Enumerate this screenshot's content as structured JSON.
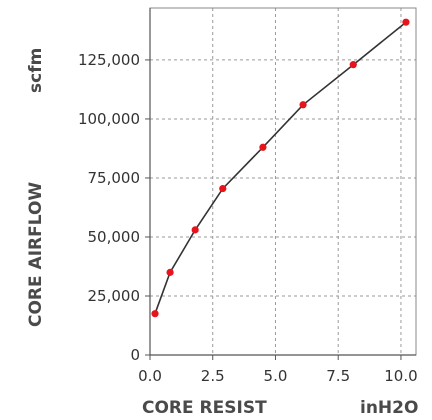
{
  "chart_data": {
    "type": "line",
    "xlabel": "CORE RESIST",
    "xunit": "inH2O",
    "ylabel": "CORE AIRFLOW",
    "yunit": "scfm",
    "xlim": [
      0,
      10.6
    ],
    "ylim": [
      0,
      147000
    ],
    "x_ticks": [
      0.0,
      2.5,
      5.0,
      7.5,
      10.0
    ],
    "x_tick_labels": [
      "0.0",
      "2.5",
      "5.0",
      "7.5",
      "10.0"
    ],
    "y_ticks": [
      0,
      25000,
      50000,
      75000,
      100000,
      125000
    ],
    "y_tick_labels": [
      "0",
      "25,000",
      "50,000",
      "75,000",
      "100,000",
      "125,000"
    ],
    "grid": true,
    "line_color": "#333333",
    "marker_color": "#e8141c",
    "series": [
      {
        "x": [
          0.2,
          0.8,
          1.8,
          2.9,
          4.5,
          6.1,
          8.1,
          10.2
        ],
        "y": [
          17500,
          35000,
          53000,
          70500,
          88000,
          106000,
          123000,
          141000
        ]
      }
    ]
  }
}
